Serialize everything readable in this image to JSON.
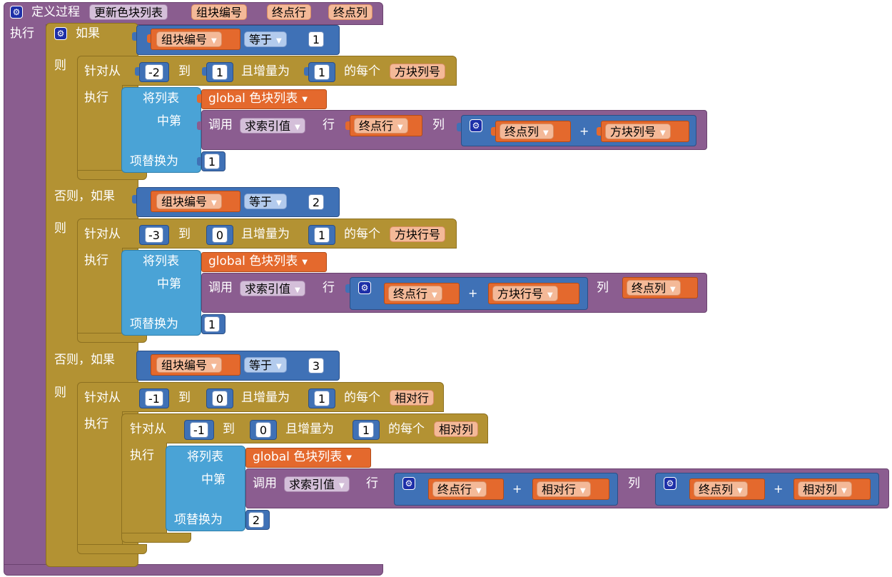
{
  "procedure": {
    "define_label": "定义过程",
    "name": "更新色块列表",
    "params": [
      "组块编号",
      "终点行",
      "终点列"
    ],
    "do_label": "执行"
  },
  "if_block": {
    "if_label": "如果",
    "then_label": "则",
    "else_if_label": "否则，如果",
    "branches": [
      {
        "cond_var": "组块编号",
        "cond_op": "等于",
        "cond_val": "1",
        "for_label": "针对从",
        "from": "-2",
        "to_label": "到",
        "to": "1",
        "step_label": "且增量为",
        "step": "1",
        "each_label": "的每个",
        "loop_var": "方块列号",
        "do_label": "执行"
      },
      {
        "cond_var": "组块编号",
        "cond_op": "等于",
        "cond_val": "2",
        "for_label": "针对从",
        "from": "-3",
        "to_label": "到",
        "to": "0",
        "step_label": "且增量为",
        "step": "1",
        "each_label": "的每个",
        "loop_var": "方块行号",
        "do_label": "执行"
      },
      {
        "cond_var": "组块编号",
        "cond_op": "等于",
        "cond_val": "3",
        "for_label": "针对从",
        "from": "-1",
        "to_label": "到",
        "to": "0",
        "step_label": "且增量为",
        "step": "1",
        "each_label": "的每个",
        "loop_var": "相对行",
        "do_label": "执行",
        "inner_for": {
          "for_label": "针对从",
          "from": "-1",
          "to_label": "到",
          "to": "0",
          "step_label": "且增量为",
          "step": "1",
          "each_label": "的每个",
          "loop_var": "相对列",
          "do_label": "执行"
        }
      }
    ]
  },
  "replace_block": {
    "list_label": "将列表",
    "global_var": "global 色块列表",
    "index_label": "中第",
    "call_label": "调用",
    "func_name": "求索引值",
    "row_label": "行",
    "col_label": "列",
    "replace_label": "项替换为",
    "plus": "+"
  },
  "replaces": [
    {
      "row_a": "终点行",
      "col_a": "终点列",
      "col_b": "方块列号",
      "value": "1"
    },
    {
      "row_a": "终点行",
      "row_b": "方块行号",
      "col_a": "终点列",
      "value": "1"
    },
    {
      "row_a": "终点行",
      "row_b": "相对行",
      "col_a": "终点列",
      "col_b": "相对列",
      "value": "2"
    }
  ],
  "colors": {
    "procedure": "#8a5d8f",
    "control": "#b39233",
    "list": "#4aa3d6",
    "math": "#3f71b6",
    "variable": "#e4692d"
  }
}
